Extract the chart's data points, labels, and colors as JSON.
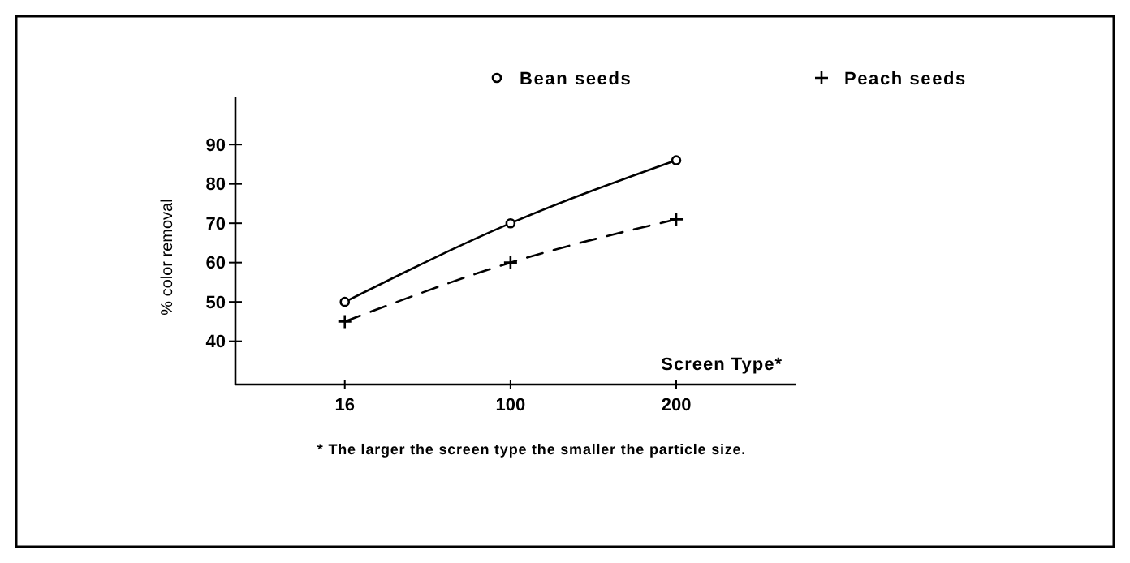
{
  "chart_data": {
    "type": "line",
    "xlabel": "Screen Type*",
    "ylabel": "% color removal",
    "categories": [
      "16",
      "100",
      "200"
    ],
    "series": [
      {
        "name": "Bean seeds",
        "color": "#000000",
        "values": [
          50,
          70,
          86
        ],
        "marker": "circle",
        "line_style": "solid"
      },
      {
        "name": "Peach seeds",
        "color": "#000000",
        "values": [
          45,
          60,
          71
        ],
        "marker": "cross",
        "line_style": "dashed"
      }
    ],
    "ylim": [
      29,
      102
    ],
    "yticks": [
      40,
      50,
      60,
      70,
      80,
      90
    ],
    "grid": false,
    "legend": "top right",
    "annotations": [
      "* The larger the screen type the smaller the particle size."
    ]
  }
}
